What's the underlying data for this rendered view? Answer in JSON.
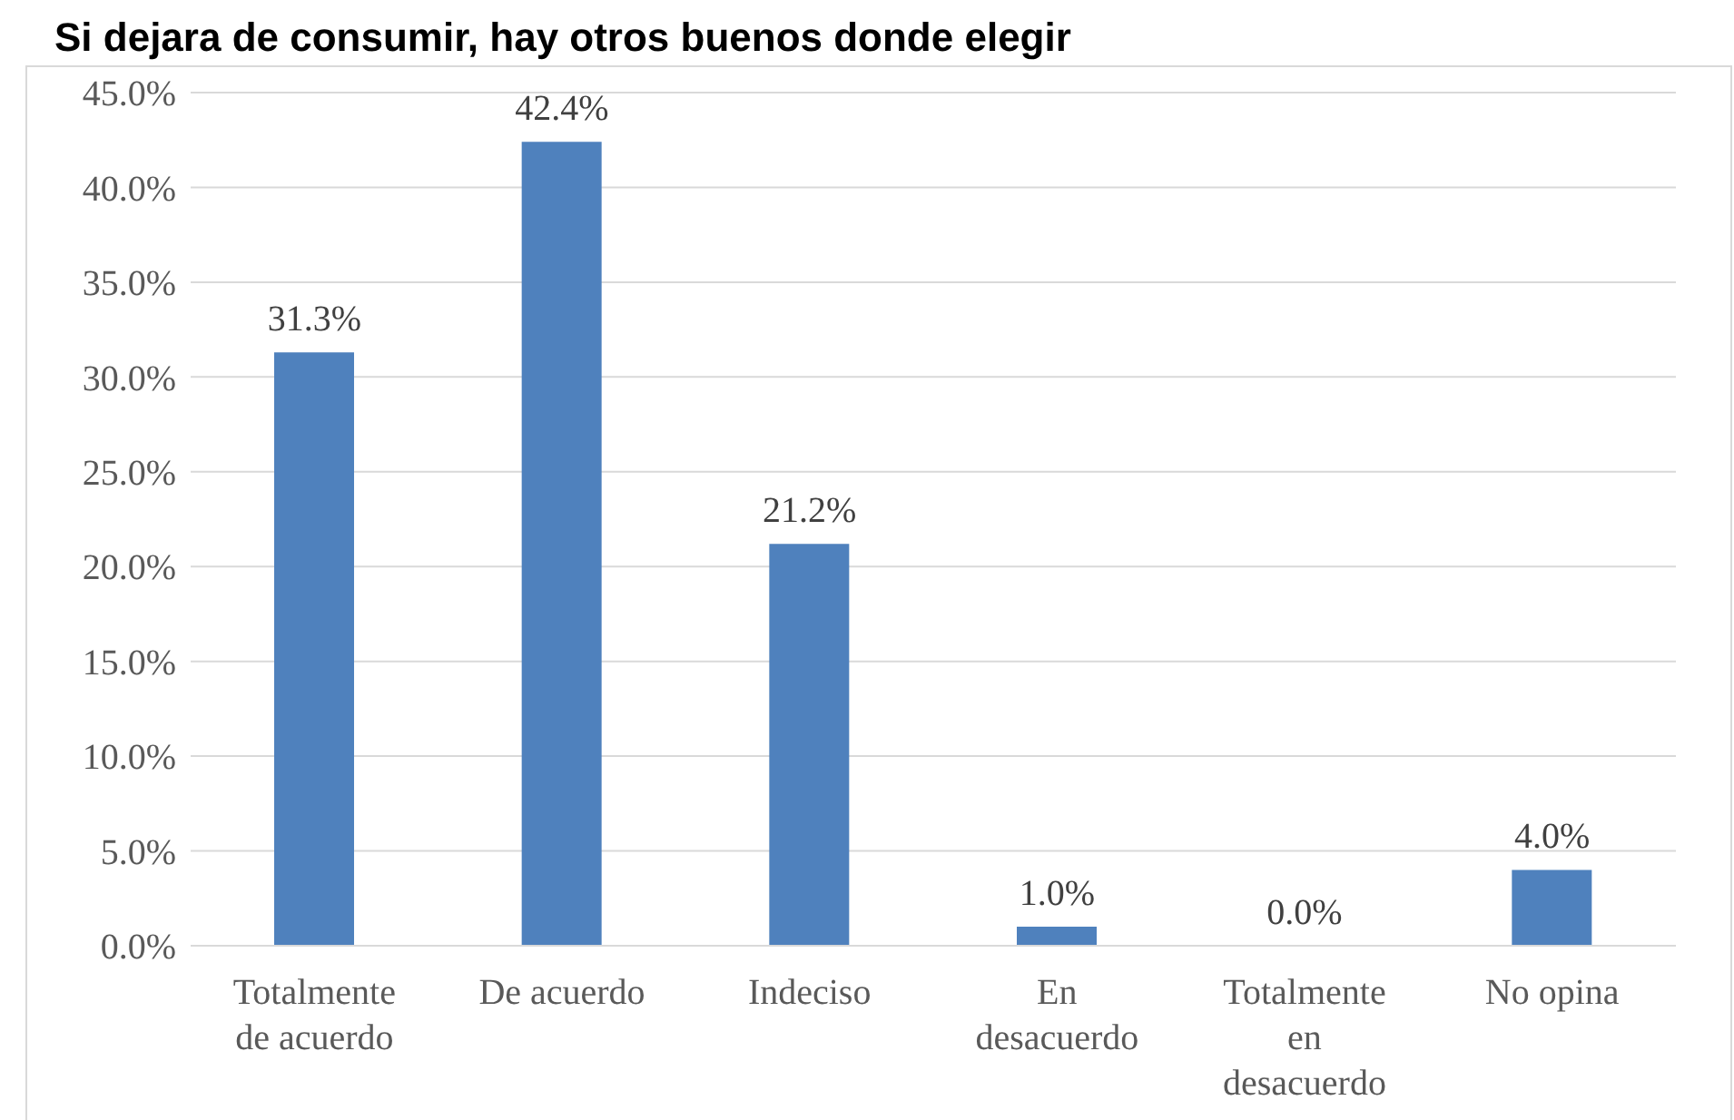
{
  "chart_data": {
    "type": "bar",
    "title": "Si dejara de consumir, hay otros buenos donde elegir",
    "categories": [
      "Totalmente de acuerdo",
      "De acuerdo",
      "Indeciso",
      "En desacuerdo",
      "Totalmente en desacuerdo",
      "No opina"
    ],
    "values": [
      31.3,
      42.4,
      21.2,
      1.0,
      0.0,
      4.0
    ],
    "color": "#4f81bd",
    "ylim": [
      0,
      45
    ],
    "yticks": [
      {
        "value": 0,
        "label": "0.0%"
      },
      {
        "value": 5,
        "label": "5.0%"
      },
      {
        "value": 10,
        "label": "10.0%"
      },
      {
        "value": 15,
        "label": "15.0%"
      },
      {
        "value": 20,
        "label": "20.0%"
      },
      {
        "value": 25,
        "label": "25.0%"
      },
      {
        "value": 30,
        "label": "30.0%"
      },
      {
        "value": 35,
        "label": "35.0%"
      },
      {
        "value": 40,
        "label": "40.0%"
      },
      {
        "value": 45,
        "label": "45.0%"
      }
    ],
    "value_labels": [
      "31.3%",
      "42.4%",
      "21.2%",
      "1.0%",
      "0.0%",
      "4.0%"
    ],
    "grid": "y"
  }
}
